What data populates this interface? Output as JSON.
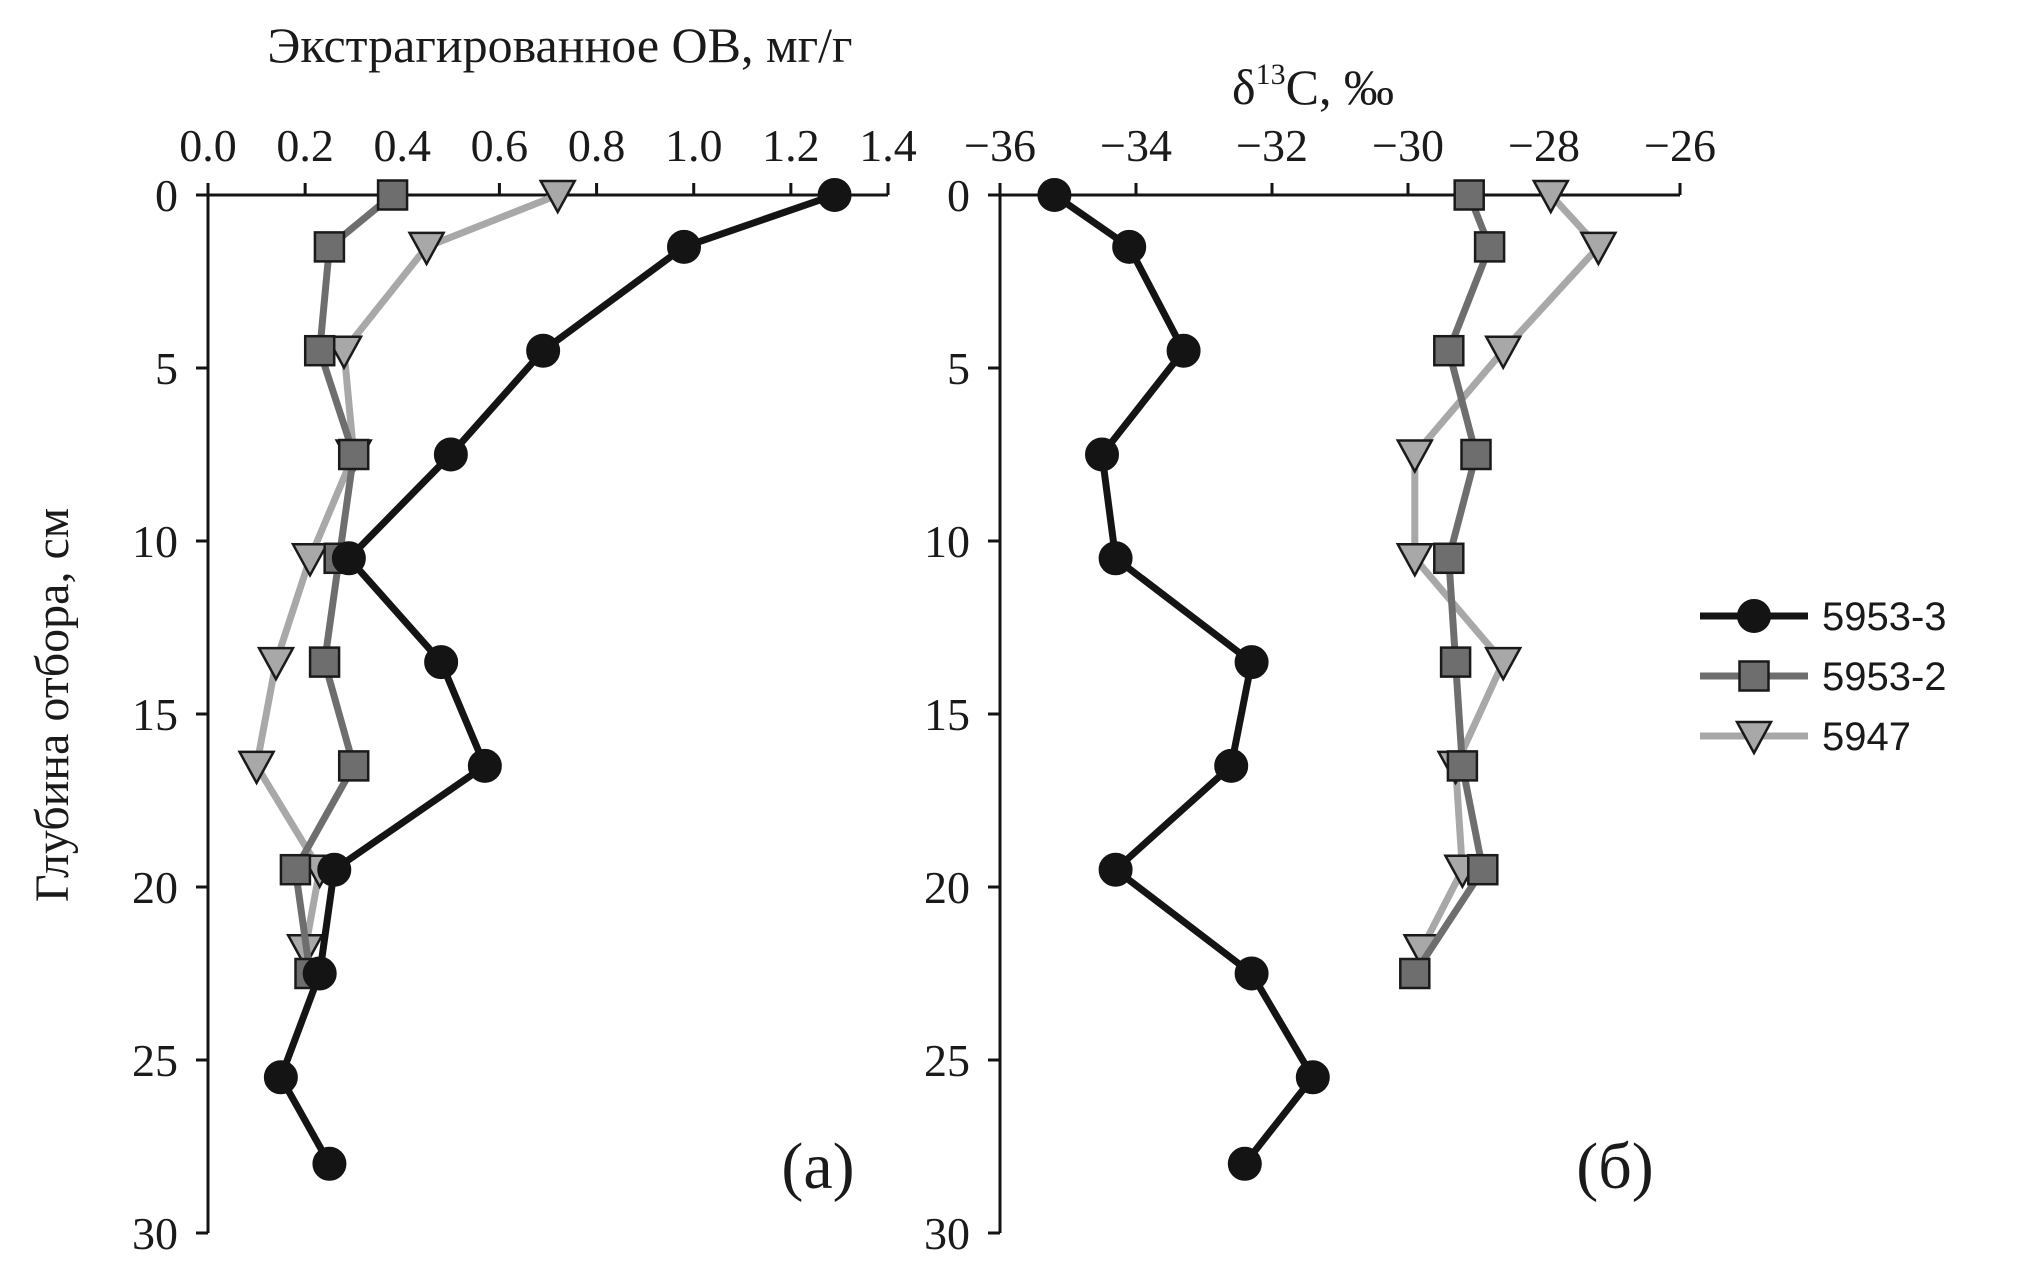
{
  "legend": {
    "position": "right",
    "entries": [
      {
        "label": "5953-3",
        "color": "#141414",
        "marker": "circle"
      },
      {
        "label": "5953-2",
        "color": "#6e6e6e",
        "marker": "square"
      },
      {
        "label": "5947",
        "color": "#a8a8a8",
        "marker": "triangle-down"
      }
    ]
  },
  "chart_data": [
    {
      "type": "line",
      "panel_label": "(а)",
      "xlabel": "Экстрагированное ОВ, мг/г",
      "ylabel": "Глубина отбора, см",
      "xlim": [
        0.0,
        1.4
      ],
      "ylim": [
        30,
        0
      ],
      "y_inverted": true,
      "xticks": [
        "0.0",
        "0.2",
        "0.4",
        "0.6",
        "0.8",
        "1.0",
        "1.2",
        "1.4"
      ],
      "yticks": [
        "0",
        "5",
        "10",
        "15",
        "20",
        "25",
        "30"
      ],
      "x_axis_position": "top",
      "grid": false,
      "series": [
        {
          "name": "5953-3",
          "color": "#141414",
          "marker": "circle",
          "points": [
            [
              1.29,
              0
            ],
            [
              0.98,
              1.5
            ],
            [
              0.69,
              4.5
            ],
            [
              0.5,
              7.5
            ],
            [
              0.29,
              10.5
            ],
            [
              0.48,
              13.5
            ],
            [
              0.57,
              16.5
            ],
            [
              0.26,
              19.5
            ],
            [
              0.23,
              22.5
            ],
            [
              0.15,
              25.5
            ],
            [
              0.25,
              28
            ]
          ]
        },
        {
          "name": "5953-2",
          "color": "#6e6e6e",
          "marker": "square",
          "points": [
            [
              0.38,
              0
            ],
            [
              0.25,
              1.5
            ],
            [
              0.23,
              4.5
            ],
            [
              0.3,
              7.5
            ],
            [
              0.27,
              10.5
            ],
            [
              0.24,
              13.5
            ],
            [
              0.3,
              16.5
            ],
            [
              0.18,
              19.5
            ],
            [
              0.21,
              22.5
            ]
          ]
        },
        {
          "name": "5947",
          "color": "#a8a8a8",
          "marker": "triangle-down",
          "points": [
            [
              0.72,
              0
            ],
            [
              0.45,
              1.5
            ],
            [
              0.28,
              4.5
            ],
            [
              0.3,
              7.5
            ],
            [
              0.21,
              10.5
            ],
            [
              0.14,
              13.5
            ],
            [
              0.1,
              16.5
            ],
            [
              0.23,
              19.5
            ],
            [
              0.2,
              21.8
            ]
          ]
        }
      ]
    },
    {
      "type": "line",
      "panel_label": "(б)",
      "xlabel_prefix": "δ",
      "xlabel_sup": "13",
      "xlabel_suffix": "C, ‰",
      "ylabel": "",
      "xlim": [
        -36,
        -26
      ],
      "ylim": [
        30,
        0
      ],
      "y_inverted": true,
      "xticks": [
        "−36",
        "−34",
        "−32",
        "−30",
        "−28",
        "−26"
      ],
      "yticks": [
        "0",
        "5",
        "10",
        "15",
        "20",
        "25",
        "30"
      ],
      "x_axis_position": "top",
      "grid": false,
      "series": [
        {
          "name": "5953-3",
          "color": "#141414",
          "marker": "circle",
          "points": [
            [
              -35.2,
              0
            ],
            [
              -34.1,
              1.5
            ],
            [
              -33.3,
              4.5
            ],
            [
              -34.5,
              7.5
            ],
            [
              -34.3,
              10.5
            ],
            [
              -32.3,
              13.5
            ],
            [
              -32.6,
              16.5
            ],
            [
              -34.3,
              19.5
            ],
            [
              -32.3,
              22.5
            ],
            [
              -31.4,
              25.5
            ],
            [
              -32.4,
              28
            ]
          ]
        },
        {
          "name": "5953-2",
          "color": "#6e6e6e",
          "marker": "square",
          "points": [
            [
              -29.1,
              0
            ],
            [
              -28.8,
              1.5
            ],
            [
              -29.4,
              4.5
            ],
            [
              -29.0,
              7.5
            ],
            [
              -29.4,
              10.5
            ],
            [
              -29.3,
              13.5
            ],
            [
              -29.2,
              16.5
            ],
            [
              -28.9,
              19.5
            ],
            [
              -29.9,
              22.5
            ]
          ]
        },
        {
          "name": "5947",
          "color": "#a8a8a8",
          "marker": "triangle-down",
          "points": [
            [
              -27.9,
              0
            ],
            [
              -27.2,
              1.5
            ],
            [
              -28.6,
              4.5
            ],
            [
              -29.9,
              7.5
            ],
            [
              -29.9,
              10.5
            ],
            [
              -28.6,
              13.5
            ],
            [
              -29.3,
              16.5
            ],
            [
              -29.2,
              19.5
            ],
            [
              -29.8,
              21.8
            ]
          ]
        }
      ]
    }
  ]
}
